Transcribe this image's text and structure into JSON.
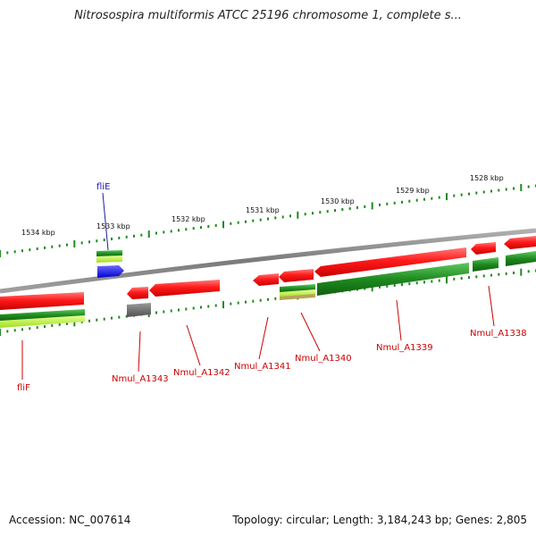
{
  "title": "Nitrosospira multiformis ATCC 25196 chromosome 1, complete s...",
  "footer": {
    "accession": "Accession: NC_007614",
    "summary": "Topology: circular; Length: 3,184,243 bp; Genes: 2,805"
  },
  "colors": {
    "backbone": "#8a8a8a",
    "forward_gene": "#e01010",
    "reverse_gene": "#1f8a1f",
    "blue_gene": "#1010e0",
    "gray_gene": "#707070",
    "tick": "#1f8a1f",
    "label_red": "#cc0000",
    "label_blue": "#1a1aa6"
  },
  "scale_labels": [
    "1534 kbp",
    "1533 kbp",
    "1532 kbp",
    "1531 kbp",
    "1530 kbp",
    "1529 kbp",
    "1528 kbp"
  ],
  "gene_labels": [
    "fliE",
    "fliF",
    "Nmul_A1343",
    "Nmul_A1342",
    "Nmul_A1341",
    "Nmul_A1340",
    "Nmul_A1339",
    "Nmul_A1338"
  ]
}
